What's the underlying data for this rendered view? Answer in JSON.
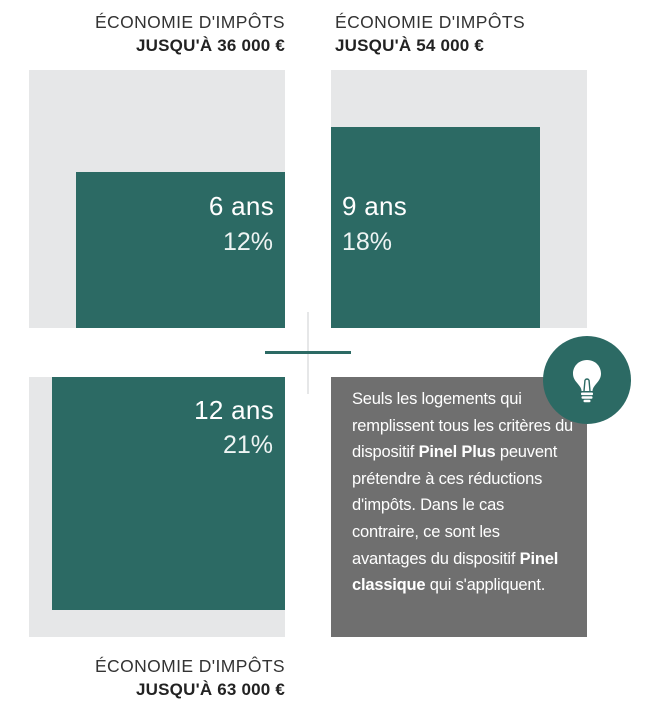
{
  "captions": {
    "top_left": {
      "line1": "ÉCONOMIE D'IMPÔTS",
      "line2": "JUSQU'À 36 000 €"
    },
    "top_right": {
      "line1": "ÉCONOMIE D'IMPÔTS",
      "line2": "JUSQU'À 54 000 €"
    },
    "bottom_left": {
      "line1": "ÉCONOMIE D'IMPÔTS",
      "line2": "JUSQU'À 63 000 €"
    }
  },
  "panels": {
    "six_years": {
      "duration": "6 ans",
      "rate": "12%"
    },
    "nine_years": {
      "duration": "9 ans",
      "rate": "18%"
    },
    "twelve_years": {
      "duration": "12 ans",
      "rate": "21%"
    }
  },
  "info": {
    "text_before": "Seuls les logements qui remplissent tous les critères du dispositif ",
    "bold1": "Pinel Plus",
    "text_middle": " peuvent prétendre à ces réductions d'impôts. Dans le cas contraire, ce sont les avantages du dispositif ",
    "bold2": "Pinel classique",
    "text_after": " qui s'appliquent.",
    "icon": "lightbulb-icon"
  },
  "colors": {
    "accent": "#2c6a64",
    "light_gray": "#e6e7e8",
    "info_gray": "#6f6f6f"
  }
}
